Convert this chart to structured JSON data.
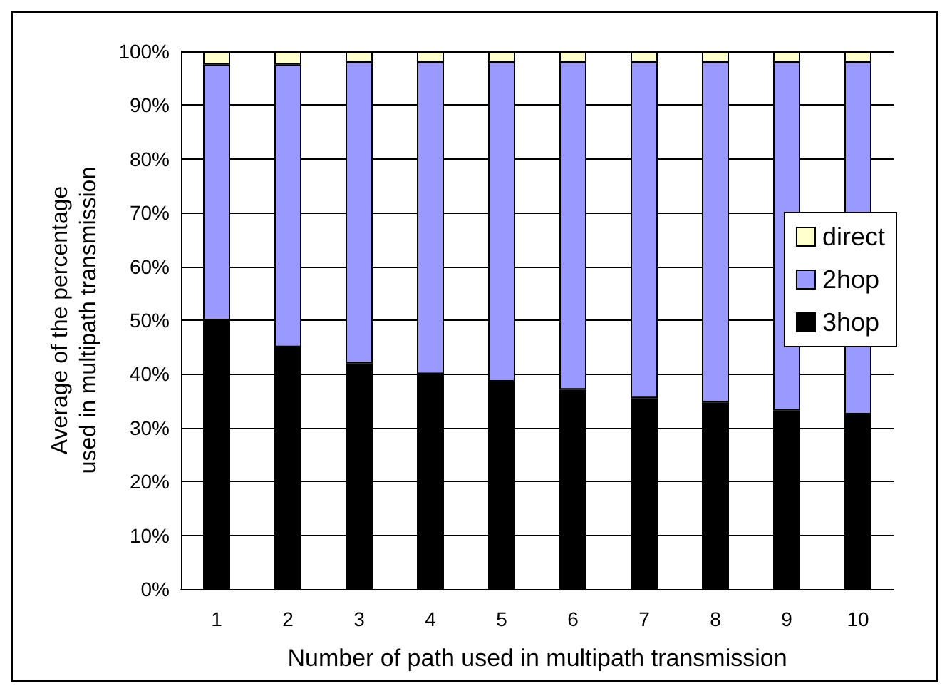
{
  "chart_data": {
    "type": "bar",
    "stacked": true,
    "xlabel": "Number of path used in multipath transmission",
    "ylabel": "Average of the percentage\nused in multipath transmission",
    "categories": [
      "1",
      "2",
      "3",
      "4",
      "5",
      "6",
      "7",
      "8",
      "9",
      "10"
    ],
    "series": [
      {
        "name": "3hop",
        "color": "#000000",
        "values": [
          50,
          45,
          42,
          40,
          38.6,
          37.1,
          35.5,
          34.7,
          33.2,
          32.5
        ]
      },
      {
        "name": "2hop",
        "color": "#9999ff",
        "values": [
          47.5,
          52.5,
          56,
          58,
          59.4,
          60.9,
          62.5,
          63.3,
          64.8,
          65.5
        ]
      },
      {
        "name": "direct",
        "color": "#ffffcc",
        "values": [
          2.5,
          2.5,
          2,
          2,
          2,
          2,
          2,
          2,
          2,
          2
        ]
      }
    ],
    "ylim": [
      0,
      100
    ],
    "yticks": [
      {
        "value": 0,
        "label": "0%"
      },
      {
        "value": 10,
        "label": "10%"
      },
      {
        "value": 20,
        "label": "20%"
      },
      {
        "value": 30,
        "label": "30%"
      },
      {
        "value": 40,
        "label": "40%"
      },
      {
        "value": 50,
        "label": "50%"
      },
      {
        "value": 60,
        "label": "60%"
      },
      {
        "value": 70,
        "label": "70%"
      },
      {
        "value": 80,
        "label": "80%"
      },
      {
        "value": 90,
        "label": "90%"
      },
      {
        "value": 100,
        "label": "100%"
      }
    ],
    "grid": "y",
    "legend": "right"
  }
}
